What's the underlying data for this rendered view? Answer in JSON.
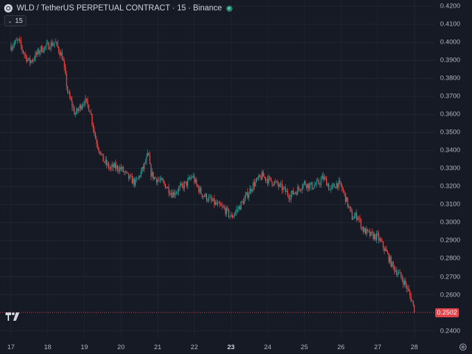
{
  "header": {
    "title": "WLD / TetherUS PERPETUAL CONTRACT · 15 · Binance",
    "interval": "15"
  },
  "price_axis": {
    "ticks": [
      "0.4200",
      "0.4100",
      "0.4000",
      "0.3900",
      "0.3800",
      "0.3700",
      "0.3600",
      "0.3500",
      "0.3400",
      "0.3300",
      "0.3200",
      "0.3100",
      "0.3000",
      "0.2900",
      "0.2800",
      "0.2700",
      "0.2600",
      "0.2400"
    ],
    "current_price": "0.2502"
  },
  "time_axis": {
    "ticks": [
      "17",
      "18",
      "19",
      "20",
      "21",
      "22",
      "23",
      "24",
      "25",
      "26",
      "27",
      "28"
    ],
    "highlight": "23"
  },
  "colors": {
    "background": "#161a25",
    "up": "#26a69a",
    "down": "#ef5350",
    "price_line": "#e0434a"
  },
  "chart_data": {
    "type": "candlestick",
    "symbol": "WLD / TetherUS PERPETUAL CONTRACT",
    "interval": "15",
    "exchange": "Binance",
    "ylim": [
      0.236,
      0.4235
    ],
    "x_ticks": [
      "17",
      "18",
      "19",
      "20",
      "21",
      "22",
      "23",
      "24",
      "25",
      "26",
      "27",
      "28"
    ],
    "last_price": 0.2502,
    "x": [
      17.0,
      17.2,
      17.35,
      17.5,
      17.65,
      17.8,
      18.0,
      18.2,
      18.4,
      18.55,
      18.75,
      19.0,
      19.15,
      19.3,
      19.5,
      19.7,
      19.8,
      20.0,
      20.2,
      20.4,
      20.6,
      20.75,
      20.8,
      20.9,
      21.0,
      21.2,
      21.4,
      21.6,
      21.8,
      21.95,
      22.05,
      22.2,
      22.4,
      22.6,
      22.85,
      23.0,
      23.2,
      23.4,
      23.6,
      23.85,
      24.0,
      24.2,
      24.4,
      24.6,
      24.8,
      25.0,
      25.2,
      25.4,
      25.5,
      25.6,
      25.7,
      25.9,
      26.0,
      26.1,
      26.3,
      26.45,
      26.6,
      26.8,
      27.0,
      27.2,
      27.4,
      27.6,
      27.75,
      27.85,
      27.95,
      28.0
    ],
    "close": [
      0.398,
      0.401,
      0.394,
      0.389,
      0.392,
      0.396,
      0.398,
      0.4,
      0.392,
      0.372,
      0.36,
      0.368,
      0.363,
      0.347,
      0.335,
      0.33,
      0.331,
      0.33,
      0.325,
      0.322,
      0.33,
      0.338,
      0.328,
      0.325,
      0.324,
      0.321,
      0.316,
      0.319,
      0.322,
      0.326,
      0.321,
      0.316,
      0.313,
      0.31,
      0.307,
      0.303,
      0.308,
      0.314,
      0.321,
      0.326,
      0.324,
      0.322,
      0.319,
      0.315,
      0.318,
      0.322,
      0.32,
      0.322,
      0.325,
      0.323,
      0.318,
      0.322,
      0.32,
      0.315,
      0.303,
      0.304,
      0.296,
      0.293,
      0.292,
      0.285,
      0.276,
      0.271,
      0.266,
      0.261,
      0.256,
      0.2502
    ]
  }
}
